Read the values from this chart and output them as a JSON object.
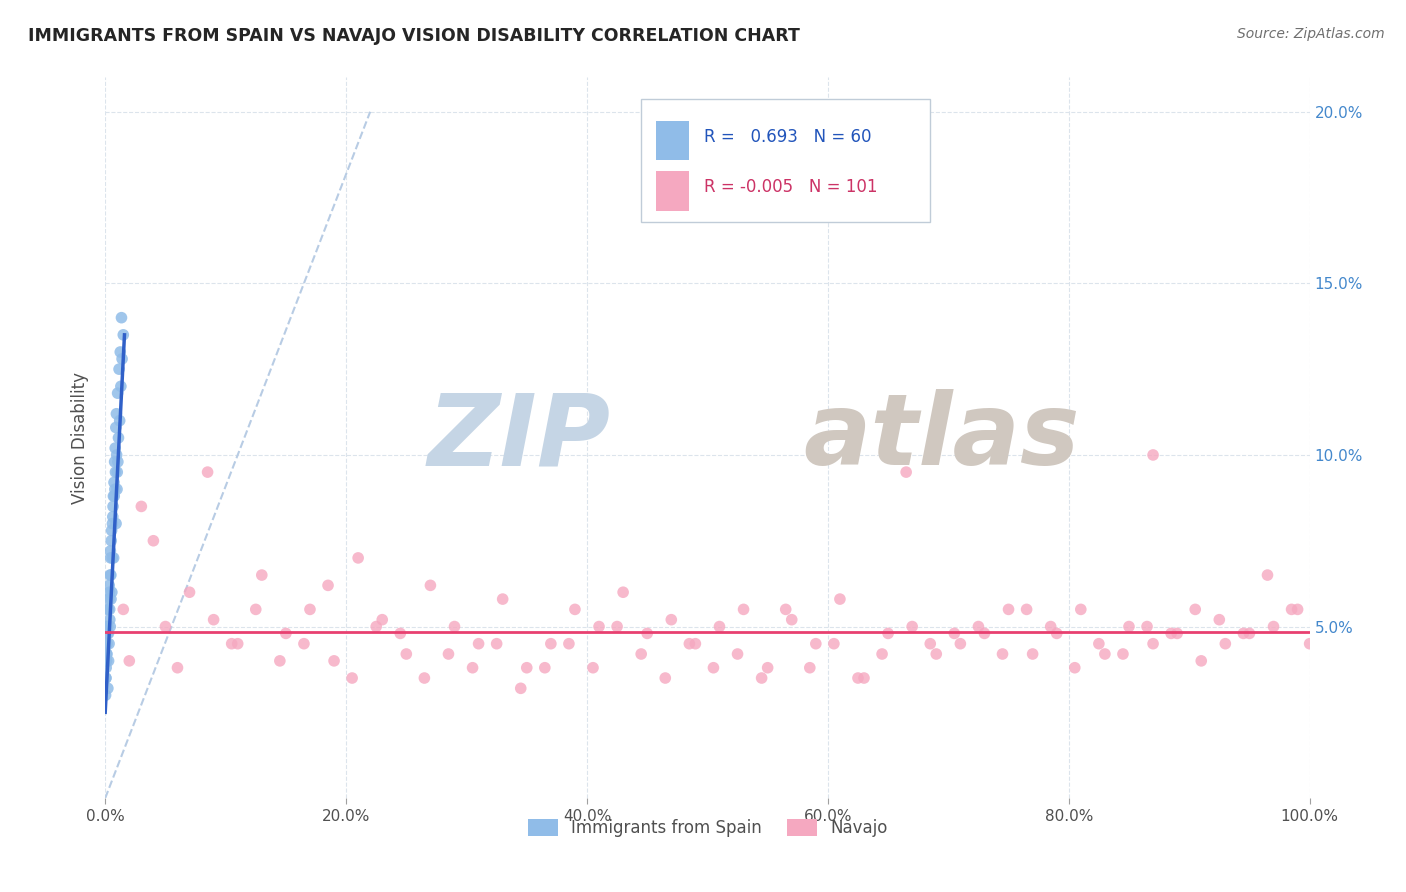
{
  "title": "IMMIGRANTS FROM SPAIN VS NAVAJO VISION DISABILITY CORRELATION CHART",
  "source_text": "Source: ZipAtlas.com",
  "ylabel": "Vision Disability",
  "xlim": [
    0,
    100
  ],
  "ylim": [
    0,
    21
  ],
  "xtick_labels": [
    "0.0%",
    "20.0%",
    "40.0%",
    "60.0%",
    "80.0%",
    "100.0%"
  ],
  "xtick_values": [
    0,
    20,
    40,
    60,
    80,
    100
  ],
  "ytick_labels": [
    "5.0%",
    "10.0%",
    "15.0%",
    "20.0%"
  ],
  "ytick_values": [
    5,
    10,
    15,
    20
  ],
  "legend_blue_label": "Immigrants from Spain",
  "legend_pink_label": "Navajo",
  "r_blue": "0.693",
  "n_blue": "60",
  "r_pink": "-0.005",
  "n_pink": "101",
  "blue_color": "#90bce8",
  "pink_color": "#f5a8c0",
  "blue_line_color": "#3060c8",
  "pink_line_color": "#e84070",
  "dashed_line_color": "#b8cce4",
  "watermark_zip_color": "#c5d5e5",
  "watermark_atlas_color": "#d0c8c0",
  "background_color": "#ffffff",
  "grid_color": "#dce4ec",
  "blue_scatter_x": [
    0.05,
    0.08,
    0.1,
    0.12,
    0.15,
    0.18,
    0.2,
    0.22,
    0.25,
    0.28,
    0.3,
    0.32,
    0.35,
    0.38,
    0.4,
    0.42,
    0.45,
    0.48,
    0.5,
    0.55,
    0.6,
    0.65,
    0.7,
    0.75,
    0.8,
    0.85,
    0.9,
    0.95,
    1.0,
    1.05,
    1.1,
    1.2,
    1.3,
    1.4,
    1.5,
    0.03,
    0.06,
    0.09,
    0.14,
    0.17,
    0.23,
    0.27,
    0.33,
    0.37,
    0.43,
    0.47,
    0.53,
    0.58,
    0.63,
    0.68,
    0.73,
    0.78,
    0.83,
    0.88,
    0.93,
    0.98,
    1.03,
    1.15,
    1.25,
    1.35
  ],
  "blue_scatter_y": [
    3.5,
    3.8,
    4.0,
    4.2,
    4.5,
    4.8,
    5.0,
    3.2,
    5.5,
    4.0,
    5.8,
    4.5,
    6.0,
    5.2,
    6.5,
    5.0,
    7.0,
    5.8,
    7.5,
    6.0,
    8.0,
    8.5,
    7.0,
    8.8,
    9.0,
    9.5,
    8.0,
    10.0,
    9.5,
    9.8,
    10.5,
    11.0,
    12.0,
    12.8,
    13.5,
    3.0,
    3.5,
    4.0,
    4.2,
    5.0,
    5.5,
    4.8,
    6.2,
    5.5,
    7.2,
    6.5,
    7.8,
    7.0,
    8.2,
    8.8,
    9.2,
    9.8,
    10.2,
    10.8,
    11.2,
    9.0,
    11.8,
    12.5,
    13.0,
    14.0
  ],
  "pink_scatter_x": [
    1.5,
    3.0,
    5.0,
    7.0,
    9.0,
    11.0,
    13.0,
    15.0,
    17.0,
    19.0,
    21.0,
    23.0,
    25.0,
    27.0,
    29.0,
    31.0,
    33.0,
    35.0,
    37.0,
    39.0,
    41.0,
    43.0,
    45.0,
    47.0,
    49.0,
    51.0,
    53.0,
    55.0,
    57.0,
    59.0,
    61.0,
    63.0,
    65.0,
    67.0,
    69.0,
    71.0,
    73.0,
    75.0,
    77.0,
    79.0,
    81.0,
    83.0,
    85.0,
    87.0,
    89.0,
    91.0,
    93.0,
    95.0,
    97.0,
    99.0,
    2.0,
    4.0,
    6.0,
    8.5,
    10.5,
    12.5,
    14.5,
    16.5,
    18.5,
    20.5,
    22.5,
    24.5,
    26.5,
    28.5,
    30.5,
    32.5,
    34.5,
    36.5,
    38.5,
    40.5,
    42.5,
    44.5,
    46.5,
    48.5,
    50.5,
    52.5,
    54.5,
    56.5,
    58.5,
    60.5,
    62.5,
    64.5,
    66.5,
    68.5,
    70.5,
    72.5,
    74.5,
    76.5,
    78.5,
    80.5,
    82.5,
    84.5,
    86.5,
    88.5,
    90.5,
    92.5,
    94.5,
    96.5,
    98.5,
    100.0,
    87.0
  ],
  "pink_scatter_y": [
    5.5,
    8.5,
    5.0,
    6.0,
    5.2,
    4.5,
    6.5,
    4.8,
    5.5,
    4.0,
    7.0,
    5.2,
    4.2,
    6.2,
    5.0,
    4.5,
    5.8,
    3.8,
    4.5,
    5.5,
    5.0,
    6.0,
    4.8,
    5.2,
    4.5,
    5.0,
    5.5,
    3.8,
    5.2,
    4.5,
    5.8,
    3.5,
    4.8,
    5.0,
    4.2,
    4.5,
    4.8,
    5.5,
    4.2,
    4.8,
    5.5,
    4.2,
    5.0,
    4.5,
    4.8,
    4.0,
    4.5,
    4.8,
    5.0,
    5.5,
    4.0,
    7.5,
    3.8,
    9.5,
    4.5,
    5.5,
    4.0,
    4.5,
    6.2,
    3.5,
    5.0,
    4.8,
    3.5,
    4.2,
    3.8,
    4.5,
    3.2,
    3.8,
    4.5,
    3.8,
    5.0,
    4.2,
    3.5,
    4.5,
    3.8,
    4.2,
    3.5,
    5.5,
    3.8,
    4.5,
    3.5,
    4.2,
    9.5,
    4.5,
    4.8,
    5.0,
    4.2,
    5.5,
    5.0,
    3.8,
    4.5,
    4.2,
    5.0,
    4.8,
    5.5,
    5.2,
    4.8,
    6.5,
    5.5,
    4.5,
    10.0
  ],
  "blue_trend_x0": 0.0,
  "blue_trend_x1": 1.6,
  "blue_trend_y0": 2.5,
  "blue_trend_y1": 13.5,
  "pink_trend_x0": 0.0,
  "pink_trend_x1": 100.0,
  "pink_trend_y0": 4.85,
  "pink_trend_y1": 4.85,
  "diag_x0": 0.0,
  "diag_x1": 22.0,
  "diag_y0": 0.0,
  "diag_y1": 20.0
}
